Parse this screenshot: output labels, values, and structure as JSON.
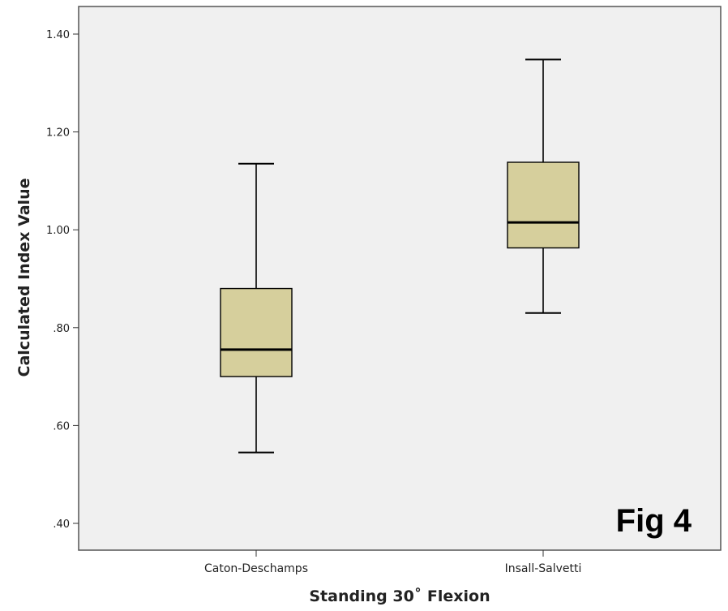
{
  "figure_label": "Fig 4",
  "chart_data": {
    "type": "box",
    "xlabel": "Standing 30˚ Flexion",
    "ylabel": "Calculated Index Value",
    "ylim": [
      0.36,
      1.48
    ],
    "yticks": [
      0.4,
      0.6,
      0.8,
      1.0,
      1.2,
      1.4
    ],
    "ytick_labels": [
      ".40",
      ".60",
      ".80",
      "1.00",
      "1.20",
      "1.40"
    ],
    "categories": [
      "Caton-Deschamps",
      "Insall-Salvetti"
    ],
    "boxes": [
      {
        "category": "Caton-Deschamps",
        "min": 0.545,
        "q1": 0.7,
        "median": 0.755,
        "q3": 0.88,
        "max": 1.135
      },
      {
        "category": "Insall-Salvetti",
        "min": 0.83,
        "q1": 0.963,
        "median": 1.015,
        "q3": 1.138,
        "max": 1.348
      }
    ],
    "grid": false,
    "colors": {
      "box_fill": "#d6cf9c",
      "plot_background": "#f0f0f0",
      "stroke": "#000000"
    }
  }
}
